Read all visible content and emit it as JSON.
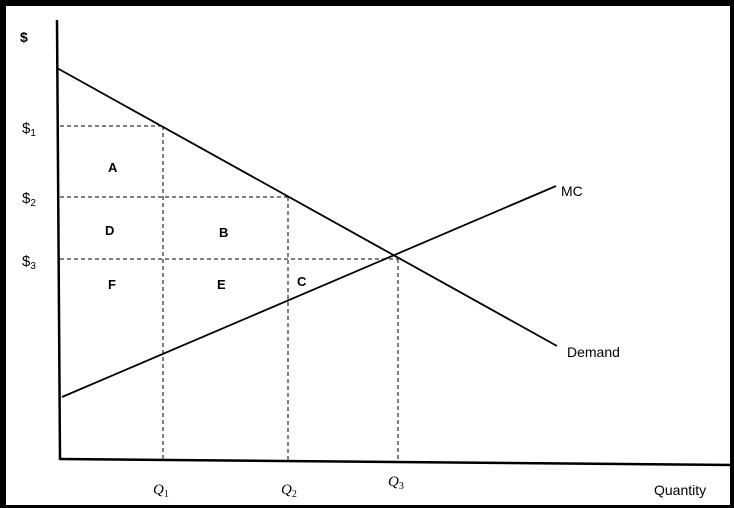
{
  "y_axis_label": "$",
  "x_axis_label": "Quantity",
  "price_labels": [
    {
      "base": "$",
      "sub": "1"
    },
    {
      "base": "$",
      "sub": "2"
    },
    {
      "base": "$",
      "sub": "3"
    }
  ],
  "quantity_labels": [
    {
      "base": "Q",
      "sub": "1"
    },
    {
      "base": "Q",
      "sub": "2"
    },
    {
      "base": "Q",
      "sub": "3"
    }
  ],
  "curves": {
    "mc": "MC",
    "demand": "Demand"
  },
  "regions": {
    "a": "A",
    "b": "B",
    "c": "C",
    "d": "D",
    "e": "E",
    "f": "F"
  }
}
